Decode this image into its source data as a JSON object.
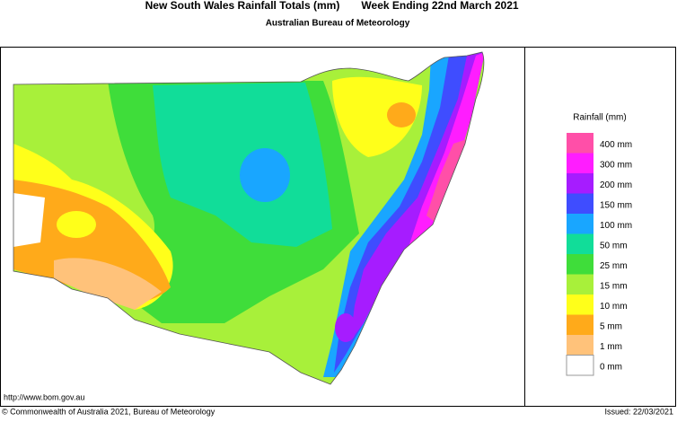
{
  "header": {
    "title": "New South Wales Rainfall Totals (mm)",
    "period": "Week Ending 22nd March 2021",
    "subtitle": "Australian Bureau of Meteorology"
  },
  "legend": {
    "title": "Rainfall (mm)",
    "items": [
      {
        "label": "400 mm",
        "color": "#ff4fa8"
      },
      {
        "label": "300 mm",
        "color": "#ff1dff"
      },
      {
        "label": "200 mm",
        "color": "#a61cff"
      },
      {
        "label": "150 mm",
        "color": "#3f4dff"
      },
      {
        "label": "100 mm",
        "color": "#19a6ff"
      },
      {
        "label": "50 mm",
        "color": "#11dd99"
      },
      {
        "label": "25 mm",
        "color": "#3fdd3a"
      },
      {
        "label": "15 mm",
        "color": "#a8f03a"
      },
      {
        "label": "10 mm",
        "color": "#ffff1a"
      },
      {
        "label": "5 mm",
        "color": "#ffaa1a"
      },
      {
        "label": "1 mm",
        "color": "#ffc27a"
      },
      {
        "label": "0 mm",
        "color": "#ffffff"
      }
    ]
  },
  "footer": {
    "url": "http://www.bom.gov.au",
    "copyright": "© Commonwealth of Australia 2021, Bureau of Meteorology",
    "issued": "Issued: 22/03/2021"
  }
}
